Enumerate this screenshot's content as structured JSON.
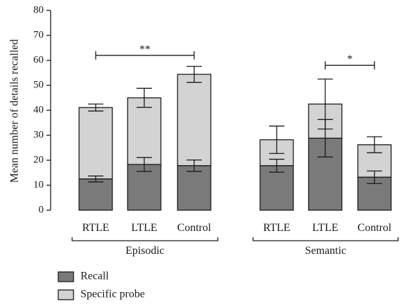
{
  "colors": {
    "recall": "#7a7a7a",
    "specific_probe": "#d3d3d3",
    "ink": "#1a1a1a"
  },
  "chart_data": {
    "type": "bar",
    "stacked": true,
    "ylabel": "Mean number of details recalled",
    "ylim": [
      0,
      80
    ],
    "yticks": [
      "0",
      "10",
      "20",
      "30",
      "40",
      "50",
      "60",
      "70",
      "80"
    ],
    "categories": [
      "RTLE",
      "LTLE",
      "Control",
      "RTLE",
      "LTLE",
      "Control"
    ],
    "groups": [
      {
        "label": "Episodic",
        "indices": [
          0,
          1,
          2
        ]
      },
      {
        "label": "Semantic",
        "indices": [
          3,
          4,
          5
        ]
      }
    ],
    "series": [
      {
        "name": "Recall",
        "values": [
          12.5,
          18.3,
          17.8,
          17.8,
          28.8,
          13.2
        ],
        "error": [
          1.2,
          2.8,
          2.3,
          2.6,
          7.5,
          2.5
        ]
      },
      {
        "name": "Specific probe",
        "values": [
          28.6,
          26.7,
          36.6,
          10.4,
          13.7,
          13.0
        ],
        "error": [
          1.4,
          3.8,
          3.2,
          5.5,
          10.0,
          3.2
        ]
      }
    ],
    "totals": [
      41.1,
      45.0,
      54.4,
      28.2,
      42.5,
      26.2
    ],
    "significance": [
      {
        "from": 0,
        "to": 2,
        "level": 62,
        "label": "**"
      },
      {
        "from": 4,
        "to": 5,
        "level": 58,
        "label": "*"
      }
    ],
    "legend": {
      "placement": "bottom-left",
      "entries": [
        "Recall",
        "Specific probe"
      ]
    }
  }
}
